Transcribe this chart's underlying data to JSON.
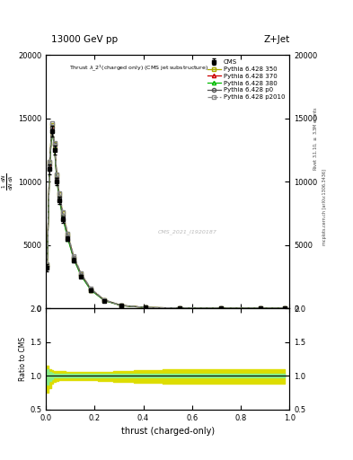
{
  "title_top": "13000 GeV pp",
  "title_right": "Z+Jet",
  "plot_title": "Thrust $\\lambda\\_2^1$ (charged only) (CMS jet substructure)",
  "xlabel": "thrust (charged-only)",
  "ylabel_ratio": "Ratio to CMS",
  "right_label_top": "Rivet 3.1.10, $\\geq$ 3.3M events",
  "right_label_bottom": "mcplots.cern.ch [arXiv:1306.3436]",
  "watermark": "CMS_2021_I1920187",
  "xlim": [
    0,
    1
  ],
  "ylim_main": [
    0,
    20000
  ],
  "ylim_ratio": [
    0.5,
    2.0
  ],
  "yticks_main": [
    0,
    5000,
    10000,
    15000,
    20000
  ],
  "yticks_ratio": [
    0.5,
    1.0,
    1.5,
    2.0
  ],
  "thrust_x": [
    0.005,
    0.015,
    0.025,
    0.035,
    0.045,
    0.055,
    0.07,
    0.09,
    0.115,
    0.145,
    0.185,
    0.24,
    0.31,
    0.41,
    0.55,
    0.72,
    0.88,
    0.98
  ],
  "cms_y": [
    3200,
    11000,
    14000,
    12500,
    10000,
    8500,
    7000,
    5500,
    3800,
    2500,
    1400,
    600,
    200,
    50,
    10,
    2,
    1,
    0
  ],
  "cms_yerr": [
    300,
    400,
    400,
    350,
    300,
    280,
    250,
    200,
    150,
    100,
    60,
    30,
    15,
    8,
    3,
    1,
    0.5,
    0
  ],
  "p350_y": [
    3400,
    11500,
    14500,
    13000,
    10500,
    9000,
    7500,
    5800,
    4000,
    2700,
    1500,
    650,
    220,
    55,
    12,
    3,
    1.2,
    0.1
  ],
  "p370_y": [
    3300,
    11200,
    14200,
    12800,
    10200,
    8700,
    7200,
    5600,
    3900,
    2600,
    1450,
    620,
    210,
    52,
    11,
    2.5,
    1.1,
    0.1
  ],
  "p380_y": [
    3250,
    11100,
    14100,
    12700,
    10100,
    8600,
    7100,
    5500,
    3850,
    2550,
    1420,
    610,
    205,
    51,
    11,
    2.4,
    1.0,
    0.1
  ],
  "p0_y": [
    3350,
    11300,
    14300,
    12900,
    10300,
    8800,
    7300,
    5700,
    3950,
    2650,
    1480,
    630,
    215,
    53,
    11.5,
    2.7,
    1.1,
    0.1
  ],
  "p2010_y": [
    3450,
    11600,
    14600,
    13100,
    10600,
    9100,
    7600,
    5900,
    4100,
    2750,
    1550,
    670,
    225,
    57,
    13,
    3.2,
    1.3,
    0.1
  ],
  "p350_band_upper": [
    1.15,
    1.1,
    1.08,
    1.07,
    1.07,
    1.07,
    1.07,
    1.06,
    1.06,
    1.06,
    1.06,
    1.06,
    1.07,
    1.08,
    1.09,
    1.1,
    1.1,
    1.1
  ],
  "p350_band_lower": [
    0.75,
    0.82,
    0.88,
    0.91,
    0.92,
    0.93,
    0.93,
    0.93,
    0.93,
    0.93,
    0.93,
    0.92,
    0.91,
    0.89,
    0.88,
    0.88,
    0.88,
    0.88
  ],
  "p380_band_upper": [
    1.09,
    1.06,
    1.04,
    1.03,
    1.03,
    1.03,
    1.03,
    1.03,
    1.03,
    1.03,
    1.03,
    1.03,
    1.03,
    1.03,
    1.03,
    1.03,
    1.03,
    1.03
  ],
  "p380_band_lower": [
    0.87,
    0.92,
    0.95,
    0.97,
    0.97,
    0.97,
    0.97,
    0.97,
    0.97,
    0.97,
    0.97,
    0.97,
    0.97,
    0.97,
    0.97,
    0.97,
    0.97,
    0.97
  ],
  "color_cms": "#000000",
  "color_p350": "#aaaa00",
  "color_p350_band": "#dddd00",
  "color_p370": "#cc0000",
  "color_p380": "#00bb00",
  "color_p380_band": "#88ee88",
  "color_p0": "#555555",
  "color_p2010": "#888888"
}
